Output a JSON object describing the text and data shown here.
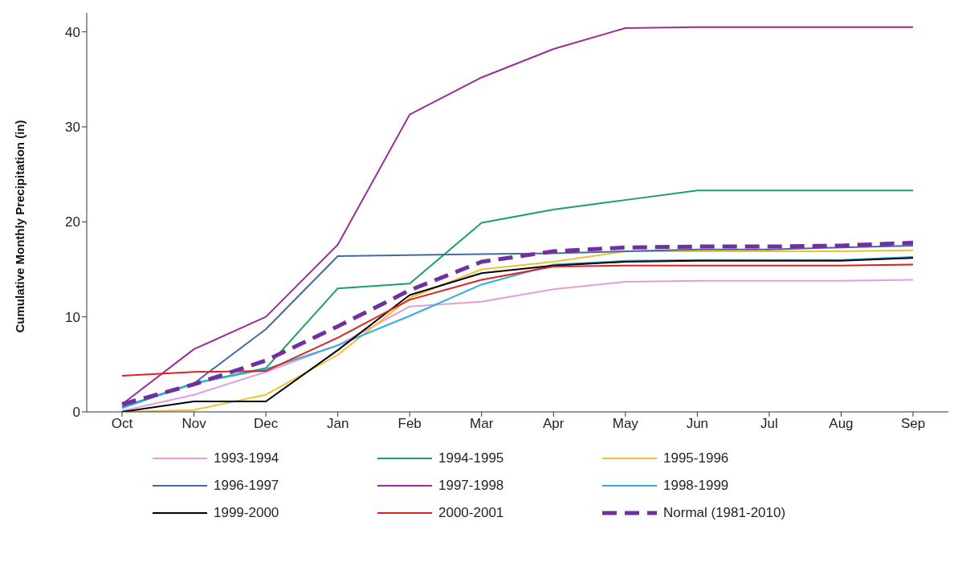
{
  "chart_data": {
    "type": "line",
    "ylabel": "Cumulative Monthly Precipitation (in)",
    "categories": [
      "Oct",
      "Nov",
      "Dec",
      "Jan",
      "Feb",
      "Mar",
      "Apr",
      "May",
      "Jun",
      "Jul",
      "Aug",
      "Sep"
    ],
    "ylim": [
      0,
      42
    ],
    "yticks": [
      0,
      10,
      20,
      30,
      40
    ],
    "grid": false,
    "legend": "bottom",
    "marker": "none",
    "line_style": "solid",
    "series": [
      {
        "name": "1993-1994",
        "color": "#e29ed8",
        "values": [
          0.1,
          1.8,
          4.2,
          7,
          11.1,
          11.6,
          12.9,
          13.7,
          13.8,
          13.8,
          13.8,
          13.9
        ]
      },
      {
        "name": "1994-1995",
        "color": "#1aa060",
        "values": [
          0.5,
          3,
          4.6,
          13,
          13.5,
          19.9,
          21.3,
          22.3,
          23.3,
          23.3,
          23.3,
          23.3
        ]
      },
      {
        "name": "1995-1996",
        "color": "#f0c030",
        "values": [
          0,
          0.2,
          1.8,
          6,
          12,
          15,
          15.8,
          16.9,
          16.9,
          16.9,
          16.9,
          17
        ]
      },
      {
        "name": "1996-1997",
        "color": "#44699e",
        "values": [
          0.5,
          3,
          8.7,
          16.4,
          16.5,
          16.6,
          16.7,
          16.9,
          17.1,
          17.1,
          17.3,
          17.5
        ]
      },
      {
        "name": "1997-1998",
        "color": "#9b2d9b",
        "values": [
          0.8,
          6.6,
          10,
          17.6,
          31.3,
          35.2,
          38.2,
          40.4,
          40.5,
          40.5,
          40.5,
          40.5
        ]
      },
      {
        "name": "1998-1999",
        "color": "#2eaee0",
        "values": [
          0.4,
          3,
          4.5,
          7,
          10.1,
          13.4,
          15.5,
          15.9,
          16,
          16,
          16,
          16.3
        ]
      },
      {
        "name": "1999-2000",
        "color": "#000000",
        "values": [
          0,
          1.1,
          1.1,
          6.5,
          12.3,
          14.6,
          15.4,
          15.8,
          15.9,
          15.9,
          15.9,
          16.2
        ]
      },
      {
        "name": "2000-2001",
        "color": "#e02020",
        "values": [
          3.8,
          4.2,
          4.3,
          7.8,
          11.8,
          13.9,
          15.3,
          15.4,
          15.4,
          15.4,
          15.4,
          15.5
        ]
      },
      {
        "name": "Normal (1981-2010)",
        "color": "#7030a0",
        "line_style": "dashed",
        "values": [
          0.8,
          2.9,
          5.4,
          9,
          12.8,
          15.8,
          16.9,
          17.3,
          17.4,
          17.4,
          17.5,
          17.8
        ]
      }
    ]
  }
}
